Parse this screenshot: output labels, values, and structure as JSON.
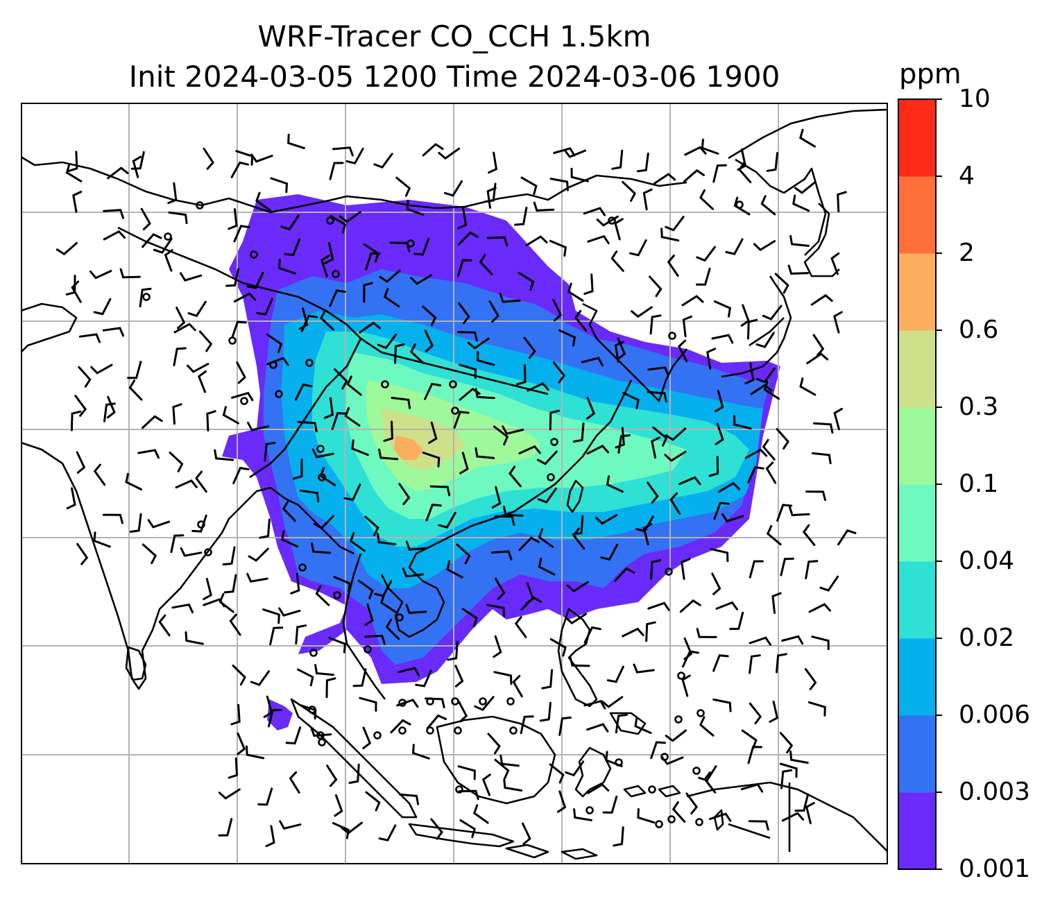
{
  "title_line1": "WRF-Tracer CO_CCH 1.5km",
  "title_line2": "Init 2024-03-05 1200 Time 2024-03-06 1900",
  "colorbar": {
    "unit": "ppm",
    "levels": [
      "0.001",
      "0.003",
      "0.006",
      "0.02",
      "0.04",
      "0.1",
      "0.3",
      "0.6",
      "2",
      "4",
      "10"
    ],
    "colors": [
      "#6a2af9",
      "#3372f3",
      "#05b0ed",
      "#2fe0d4",
      "#6ef9c0",
      "#9ef99a",
      "#cfe08a",
      "#fbaf5e",
      "#ff6f3a",
      "#ff2a18"
    ]
  },
  "map": {
    "background": "#ffffff",
    "gridline_color": "#b3b3b3",
    "coastline_color": "#000000",
    "wind_barb_color": "#000000",
    "gridlines": "on"
  }
}
